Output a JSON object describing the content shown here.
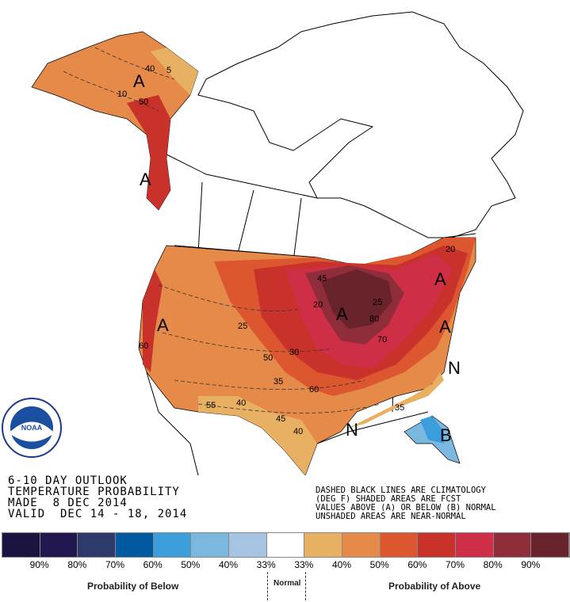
{
  "title_block": {
    "line1": "6-10 DAY OUTLOOK",
    "line2": "TEMPERATURE PROBABILITY",
    "line3": "MADE  8 DEC 2014",
    "line4": "VALID  DEC 14 - 18, 2014"
  },
  "notes": {
    "line1": "DASHED BLACK LINES ARE CLIMATOLOGY",
    "line2": "(DEG F) SHADED AREAS ARE FCST",
    "line3": "VALUES ABOVE (A) OR BELOW (B) NORMAL",
    "line4": "UNSHADED AREAS ARE NEAR-NORMAL"
  },
  "logo": {
    "text": "NOAA",
    "ring_text": "NATIONAL OCEANIC AND ATMOSPHERIC ADMINISTRATION · U.S. DEPARTMENT OF COMMERCE"
  },
  "map_labels": {
    "above": "A",
    "below": "B",
    "normal": "N",
    "contours": [
      "40",
      "5",
      "10",
      "50",
      "20",
      "25",
      "30",
      "35",
      "40",
      "45",
      "50",
      "60",
      "70",
      "80",
      "60",
      "20",
      "35",
      "45",
      "55",
      "40",
      "45",
      "25",
      "20"
    ]
  },
  "legend": {
    "colors": [
      "#1b1340",
      "#23174f",
      "#2e3a6b",
      "#015aa0",
      "#3a9edb",
      "#7ab8e0",
      "#a4c4e2",
      "#ffffff",
      "#e8b063",
      "#e58a48",
      "#dc5630",
      "#c9312b",
      "#cf2e47",
      "#8f2d3a",
      "#69232b"
    ],
    "ticks": [
      "90%",
      "80%",
      "70%",
      "60%",
      "50%",
      "40%",
      "33%",
      "33%",
      "40%",
      "50%",
      "60%",
      "70%",
      "80%",
      "90%"
    ],
    "below_caption": "Probability of Below",
    "normal_caption": "Normal",
    "above_caption": "Probability of Above"
  }
}
